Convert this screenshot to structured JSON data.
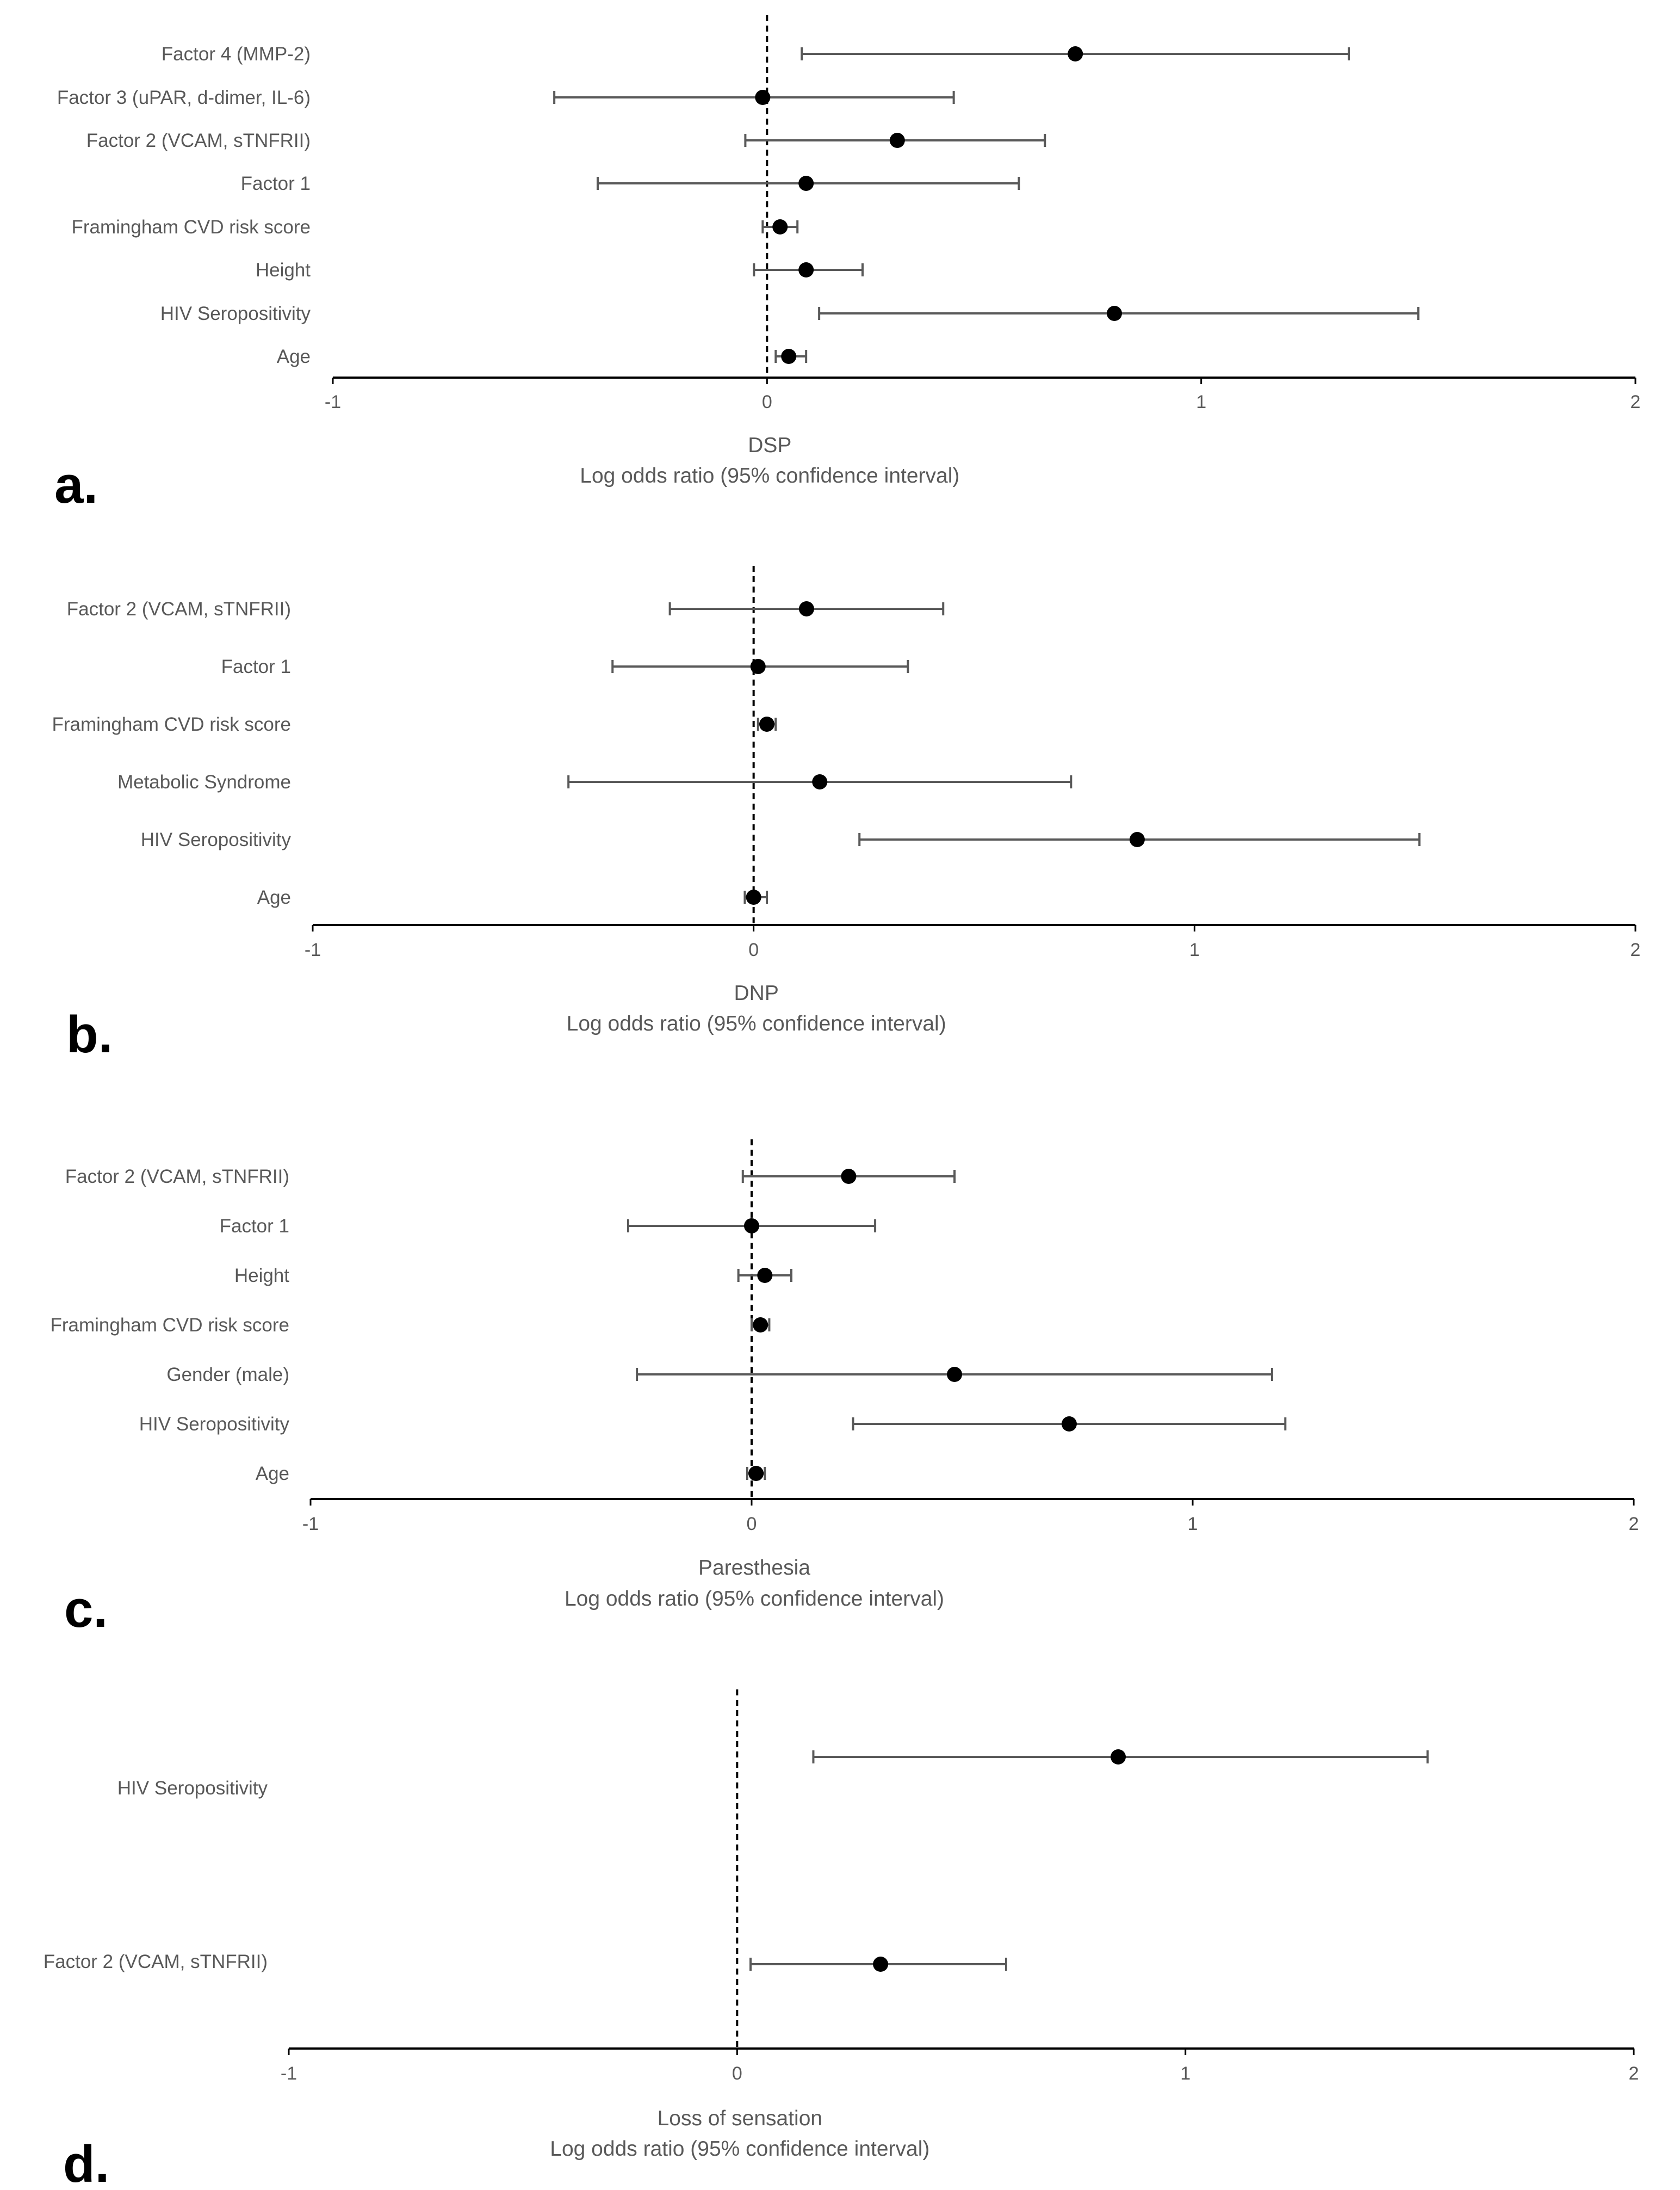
{
  "colors": {
    "point": "#000000",
    "error_bar": "#595959",
    "axis_line": "#000000",
    "reference_line": "#000000",
    "text": "#595959"
  },
  "chart_data": [
    {
      "type": "forest",
      "panel": "a.",
      "title": "DSP",
      "xlabel": "Log odds ratio (95% confidence interval)",
      "xlim": [
        -1,
        2
      ],
      "xticks": [
        -1,
        0,
        1,
        2
      ],
      "reference_line": 0,
      "rows": [
        {
          "label": "Factor 4 (MMP-2)",
          "estimate": 0.71,
          "lower": 0.08,
          "upper": 1.34
        },
        {
          "label": "Factor 3 (uPAR, d-dimer, IL-6)",
          "estimate": -0.01,
          "lower": -0.49,
          "upper": 0.43
        },
        {
          "label": "Factor 2 (VCAM, sTNFRII)",
          "estimate": 0.3,
          "lower": -0.05,
          "upper": 0.64
        },
        {
          "label": "Factor 1",
          "estimate": 0.09,
          "lower": -0.39,
          "upper": 0.58
        },
        {
          "label": "Framingham CVD risk score",
          "estimate": 0.03,
          "lower": -0.01,
          "upper": 0.07
        },
        {
          "label": "Height",
          "estimate": 0.09,
          "lower": -0.03,
          "upper": 0.22
        },
        {
          "label": "HIV Seropositivity",
          "estimate": 0.8,
          "lower": 0.12,
          "upper": 1.5
        },
        {
          "label": "Age",
          "estimate": 0.05,
          "lower": 0.02,
          "upper": 0.09
        }
      ]
    },
    {
      "type": "forest",
      "panel": "b.",
      "title": "DNP",
      "xlabel": "Log odds ratio (95% confidence interval)",
      "xlim": [
        -1,
        2
      ],
      "xticks": [
        -1,
        0,
        1,
        2
      ],
      "reference_line": 0,
      "rows": [
        {
          "label": "Factor 2 (VCAM, sTNFRII)",
          "estimate": 0.12,
          "lower": -0.19,
          "upper": 0.43
        },
        {
          "label": "Factor 1",
          "estimate": 0.01,
          "lower": -0.32,
          "upper": 0.35
        },
        {
          "label": "Framingham CVD risk score",
          "estimate": 0.03,
          "lower": 0.01,
          "upper": 0.05
        },
        {
          "label": "Metabolic Syndrome",
          "estimate": 0.15,
          "lower": -0.42,
          "upper": 0.72
        },
        {
          "label": "HIV Seropositivity",
          "estimate": 0.87,
          "lower": 0.24,
          "upper": 1.51
        },
        {
          "label": "Age",
          "estimate": 0.0,
          "lower": -0.02,
          "upper": 0.03
        }
      ]
    },
    {
      "type": "forest",
      "panel": "c.",
      "title": "Paresthesia",
      "xlabel": "Log odds ratio (95% confidence interval)",
      "xlim": [
        -1,
        2
      ],
      "xticks": [
        -1,
        0,
        1,
        2
      ],
      "reference_line": 0,
      "rows": [
        {
          "label": "Factor 2 (VCAM, sTNFRII)",
          "estimate": 0.22,
          "lower": -0.02,
          "upper": 0.46
        },
        {
          "label": "Factor 1",
          "estimate": 0.0,
          "lower": -0.28,
          "upper": 0.28
        },
        {
          "label": "Height",
          "estimate": 0.03,
          "lower": -0.03,
          "upper": 0.09
        },
        {
          "label": "Framingham CVD risk score",
          "estimate": 0.02,
          "lower": 0.0,
          "upper": 0.04
        },
        {
          "label": "Gender (male)",
          "estimate": 0.46,
          "lower": -0.26,
          "upper": 1.18
        },
        {
          "label": "HIV Seropositivity",
          "estimate": 0.72,
          "lower": 0.23,
          "upper": 1.21
        },
        {
          "label": "Age",
          "estimate": 0.01,
          "lower": -0.01,
          "upper": 0.03
        }
      ]
    },
    {
      "type": "forest",
      "panel": "d.",
      "title": "Loss of sensation",
      "xlabel": "Log odds ratio (95% confidence interval)",
      "xlim": [
        -1,
        2
      ],
      "xticks": [
        -1,
        0,
        1,
        2
      ],
      "reference_line": 0,
      "rows": [
        {
          "label": "HIV Seropositivity",
          "estimate": 0.85,
          "lower": 0.17,
          "upper": 1.54
        },
        {
          "label": "Factor 2 (VCAM, sTNFRII)",
          "estimate": 0.32,
          "lower": 0.03,
          "upper": 0.6
        }
      ]
    }
  ]
}
